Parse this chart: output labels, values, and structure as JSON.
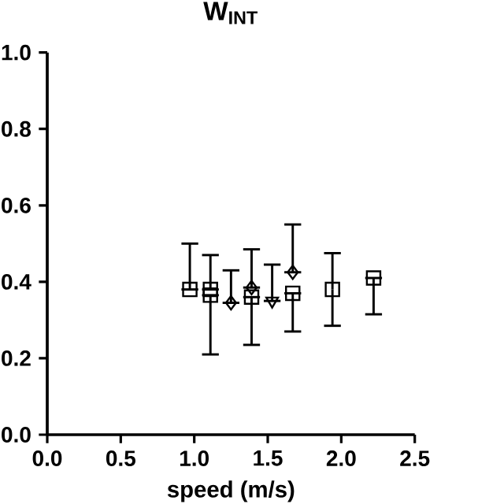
{
  "chart_data": {
    "type": "scatter",
    "title": "W$_{INT}$",
    "xlabel": "speed (m/s)",
    "xlim": [
      0,
      2.5
    ],
    "xticks": [
      {
        "value": 0,
        "label": "0.0"
      },
      0.5,
      {
        "value": 1,
        "label": "1.0"
      },
      1.5,
      {
        "value": 2,
        "label": "2.0"
      },
      2.5
    ],
    "ylim": [
      0,
      1
    ],
    "yticks": [
      {
        "value": 0,
        "label": "0.0"
      },
      0.2,
      0.4,
      0.6,
      0.8,
      {
        "value": 1,
        "label": "1.0"
      }
    ],
    "grid": false,
    "series": [
      {
        "color": "#000000",
        "marker": "square",
        "x": [
          0.97,
          1.11
        ],
        "values": [
          0.38,
          0.38
        ],
        "errors": [
          [
            0.38,
            0.5
          ],
          [
            0.38,
            0.47
          ]
        ]
      },
      {
        "color": "#000000",
        "marker": "square",
        "x": [
          1.11,
          1.39,
          1.67,
          1.94,
          2.22
        ],
        "values": [
          0.365,
          0.36,
          0.37,
          0.38,
          0.41
        ],
        "errors": [
          [
            0.21,
            0.365
          ],
          [
            0.235,
            0.36
          ],
          [
            0.27,
            0.37
          ],
          [
            0.285,
            0.475
          ],
          [
            0.315,
            0.41
          ]
        ]
      },
      {
        "color": "#000000",
        "marker": "diamond",
        "x": [
          1.25,
          1.39,
          1.67
        ],
        "values": [
          0.345,
          0.385,
          0.425
        ],
        "errors": [
          [
            0.345,
            0.43
          ],
          [
            0.385,
            0.485
          ],
          [
            0.425,
            0.55
          ]
        ]
      },
      {
        "color": "#000000",
        "marker": "triangle",
        "x": [
          1.53
        ],
        "values": [
          0.35
        ],
        "errors": [
          [
            0.35,
            0.445
          ]
        ]
      }
    ]
  }
}
